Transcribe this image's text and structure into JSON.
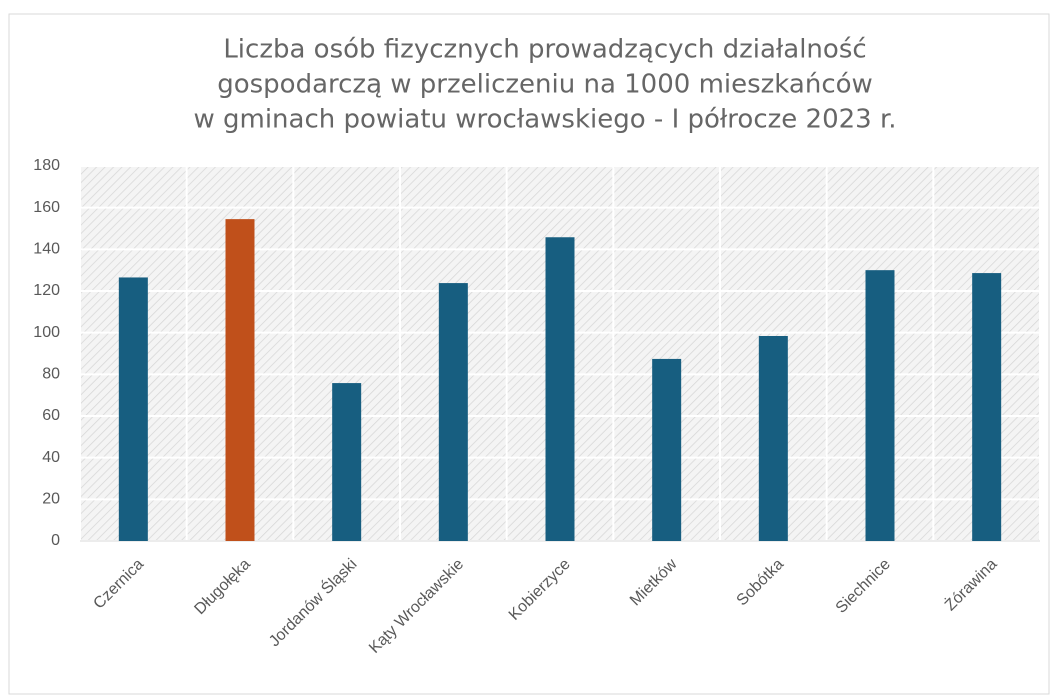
{
  "chart_data": {
    "type": "bar",
    "title": [
      "Liczba osób fizycznych prowadzących działalność",
      "gospodarczą w przeliczeniu na 1000 mieszkańców",
      "w gminach powiatu wrocławskiego - I półrocze 2023 r."
    ],
    "categories": [
      "Czernica",
      "Długołęka",
      "Jordanów Śląski",
      "Kąty Wrocławskie",
      "Kobierzyce",
      "Mietków",
      "Sobótka",
      "Siechnice",
      "Żórawina"
    ],
    "values": [
      126.5,
      154.5,
      75.8,
      123.8,
      145.8,
      87.4,
      98.4,
      130,
      128.6
    ],
    "colors": [
      "#175e80",
      "#c0501b",
      "#175e80",
      "#175e80",
      "#175e80",
      "#175e80",
      "#175e80",
      "#175e80",
      "#175e80"
    ],
    "ylim": [
      0,
      180
    ],
    "yticks": [
      0,
      20,
      40,
      60,
      80,
      100,
      120,
      140,
      160,
      180
    ],
    "grid": true
  }
}
